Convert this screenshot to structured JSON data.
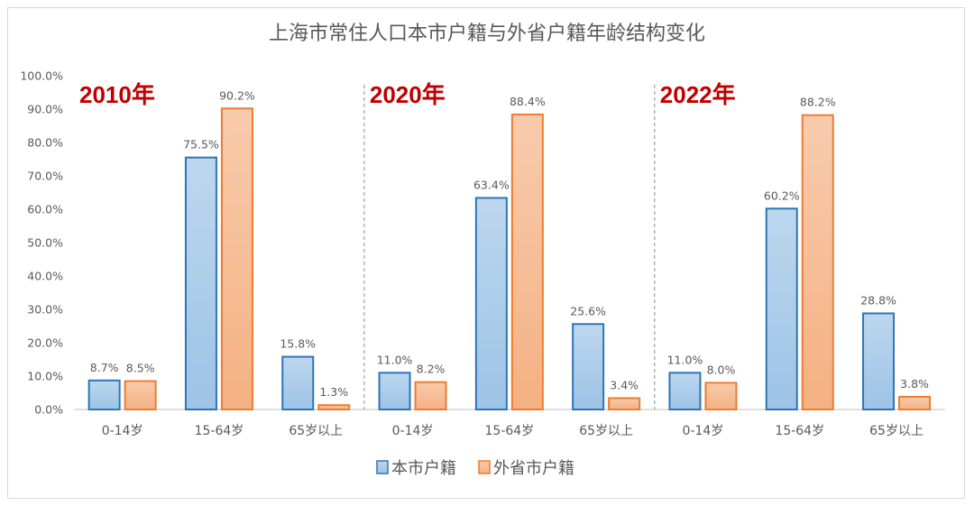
{
  "chart_data": {
    "type": "bar",
    "title": "上海市常住人口本市户籍与外省户籍年龄结构变化",
    "y_ticks": [
      "0.0%",
      "10.0%",
      "20.0%",
      "30.0%",
      "40.0%",
      "50.0%",
      "60.0%",
      "70.0%",
      "80.0%",
      "90.0%",
      "100.0%"
    ],
    "ylim": [
      0,
      100
    ],
    "grid": false,
    "legend_position": "bottom",
    "panels": [
      {
        "year": "2010年",
        "categories": [
          "0-14岁",
          "15-64岁",
          "65岁以上"
        ],
        "series": [
          {
            "name": "本市户籍",
            "values": [
              8.7,
              75.5,
              15.8
            ],
            "labels": [
              "8.7%",
              "75.5%",
              "15.8%"
            ]
          },
          {
            "name": "外省市户籍",
            "values": [
              8.5,
              90.2,
              1.3
            ],
            "labels": [
              "8.5%",
              "90.2%",
              "1.3%"
            ]
          }
        ]
      },
      {
        "year": "2020年",
        "categories": [
          "0-14岁",
          "15-64岁",
          "65岁以上"
        ],
        "series": [
          {
            "name": "本市户籍",
            "values": [
              11.0,
              63.4,
              25.6
            ],
            "labels": [
              "11.0%",
              "63.4%",
              "25.6%"
            ]
          },
          {
            "name": "外省市户籍",
            "values": [
              8.2,
              88.4,
              3.4
            ],
            "labels": [
              "8.2%",
              "88.4%",
              "3.4%"
            ]
          }
        ]
      },
      {
        "year": "2022年",
        "categories": [
          "0-14岁",
          "15-64岁",
          "65岁以上"
        ],
        "series": [
          {
            "name": "本市户籍",
            "values": [
              11.0,
              60.2,
              28.8
            ],
            "labels": [
              "11.0%",
              "60.2%",
              "28.8%"
            ]
          },
          {
            "name": "外省市户籍",
            "values": [
              8.0,
              88.2,
              3.8
            ],
            "labels": [
              "8.0%",
              "88.2%",
              "3.8%"
            ]
          }
        ]
      }
    ],
    "legend": [
      "本市户籍",
      "外省市户籍"
    ],
    "colors": {
      "local_fill_top": "#bdd7ee",
      "local_fill_bottom": "#9dc3e6",
      "local_stroke": "#2e75b6",
      "migrant_fill_top": "#f8cbad",
      "migrant_fill_bottom": "#f4b183",
      "migrant_stroke": "#ed7d31",
      "year_label": "#c00000"
    }
  }
}
